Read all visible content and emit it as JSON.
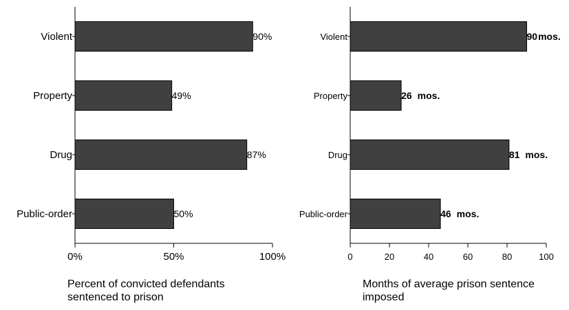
{
  "chart_data": [
    {
      "type": "bar",
      "orientation": "horizontal",
      "categories": [
        "Violent",
        "Property",
        "Drug",
        "Public-order"
      ],
      "values": [
        90,
        49,
        87,
        50
      ],
      "value_labels": [
        "90%",
        "49%",
        "87%",
        "50%"
      ],
      "xlabel": [
        "Percent of convicted defendants",
        "sentenced to prison"
      ],
      "ylabel": "",
      "xlim": [
        0,
        100
      ],
      "xticks": [
        0,
        50,
        100
      ],
      "xtick_labels": [
        "0%",
        "50%",
        "100%"
      ],
      "bar_color": "#404040",
      "grid": false,
      "legend": "none"
    },
    {
      "type": "bar",
      "orientation": "horizontal",
      "categories": [
        "Violent",
        "Property",
        "Drug",
        "Public-order"
      ],
      "values": [
        90,
        26,
        81,
        46
      ],
      "value_numbers": [
        "90",
        "26",
        "81",
        "46"
      ],
      "value_unit": "mos.",
      "xlabel": [
        "Months of average prison sentence",
        "imposed"
      ],
      "ylabel": "",
      "xlim": [
        0,
        100
      ],
      "xticks": [
        0,
        20,
        40,
        60,
        80,
        100
      ],
      "xtick_labels": [
        "0",
        "20",
        "40",
        "60",
        "80",
        "100"
      ],
      "bar_color": "#404040",
      "grid": false,
      "legend": "none"
    }
  ]
}
